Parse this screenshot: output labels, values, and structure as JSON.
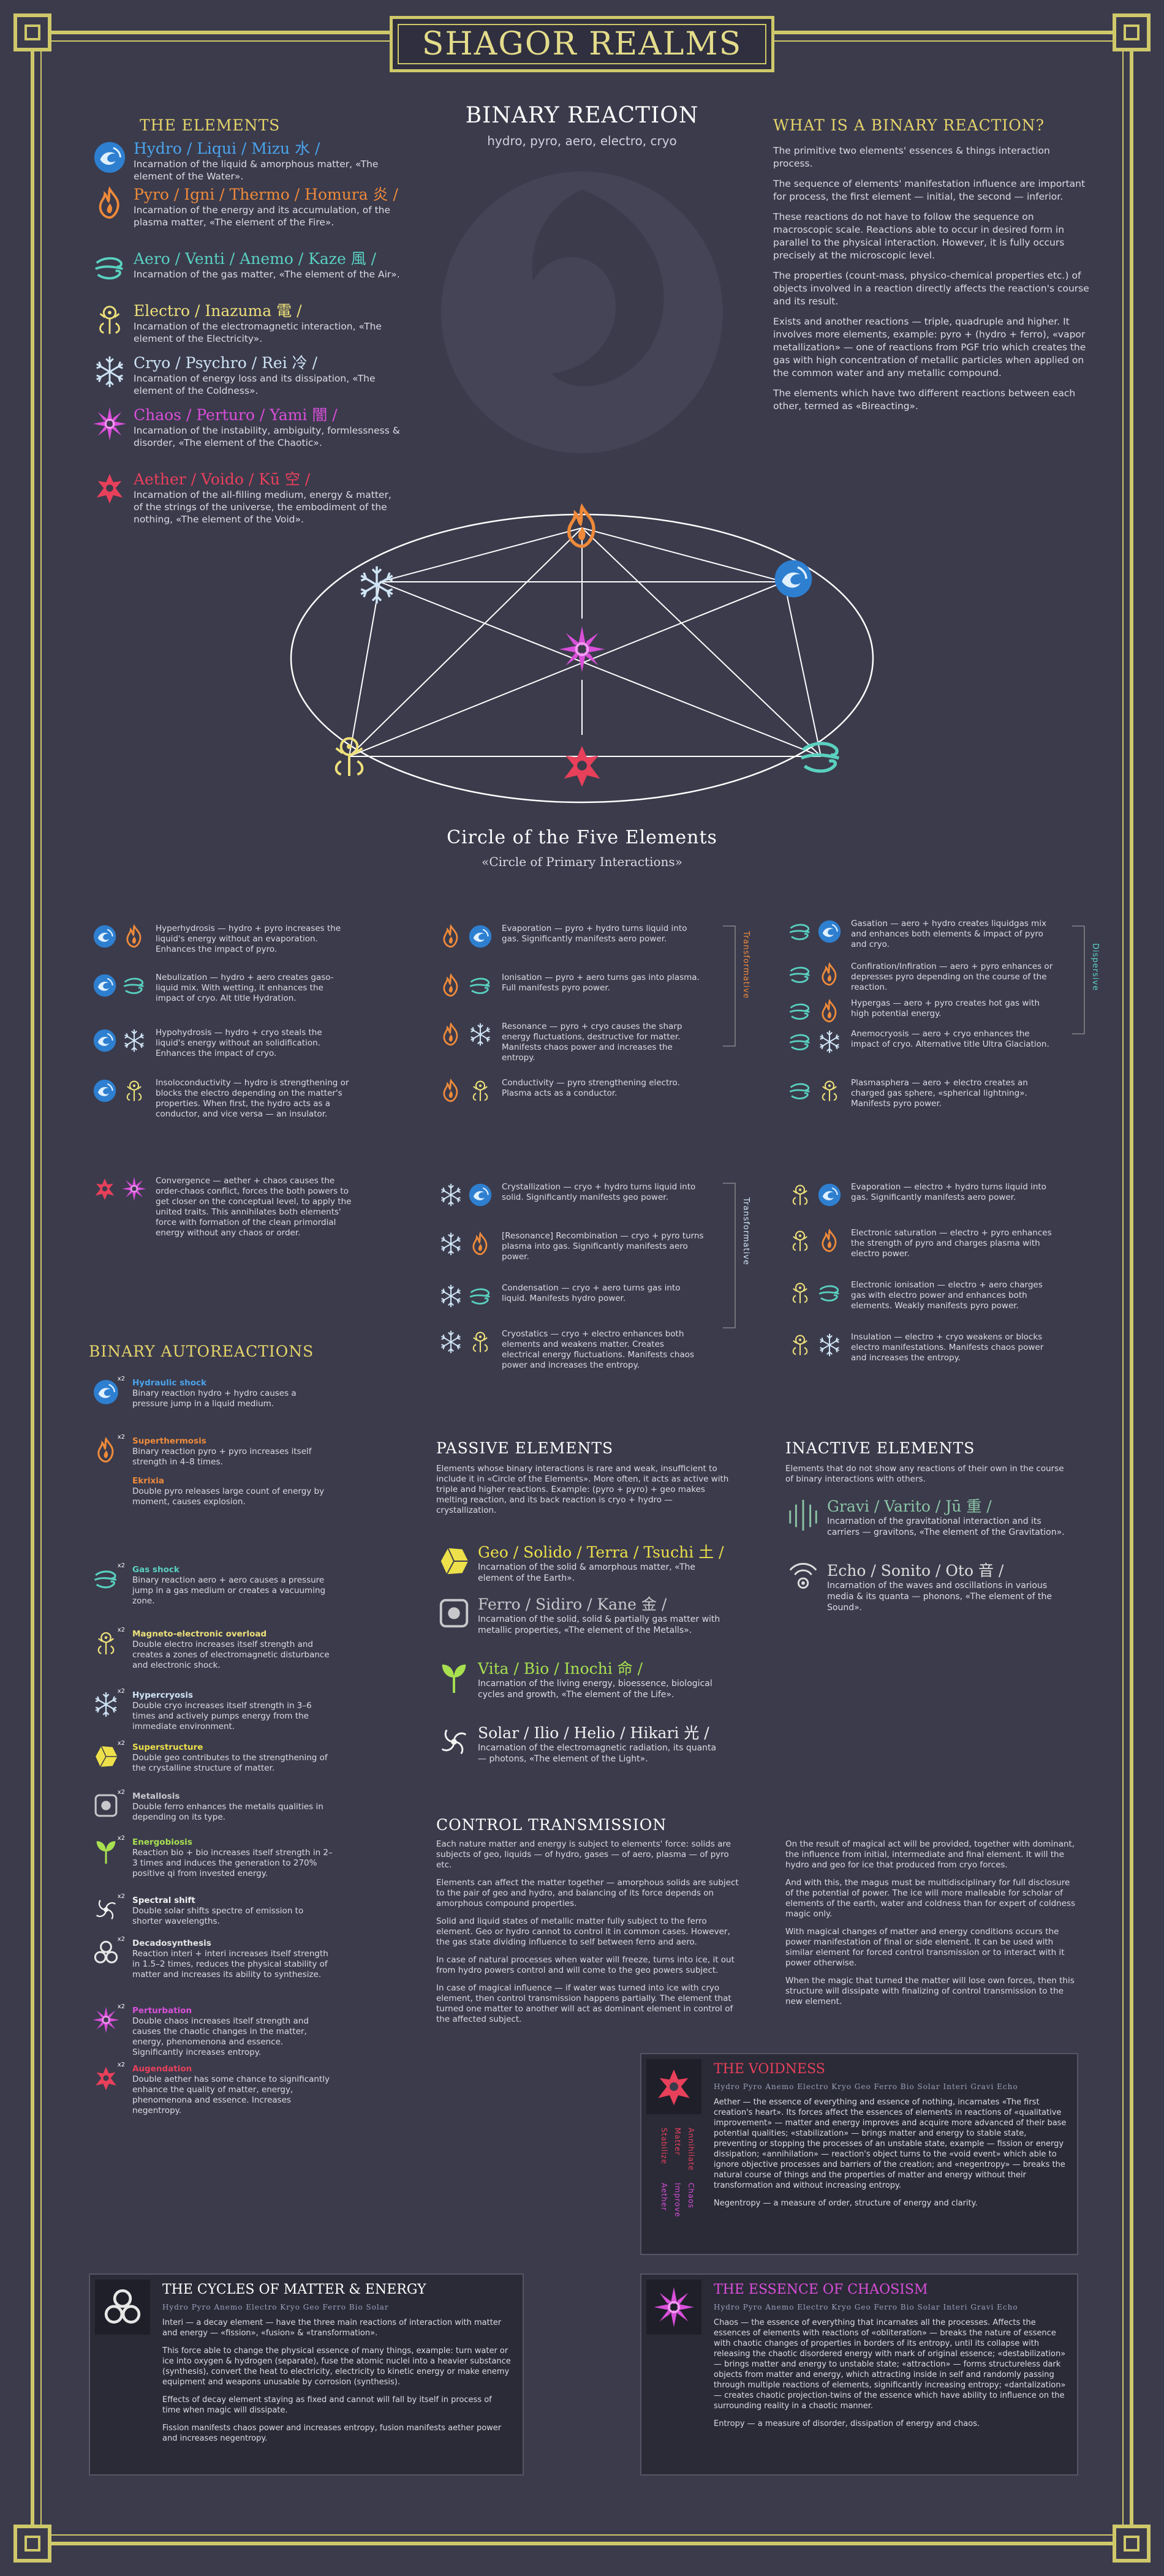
{
  "title": "SHAGOR REALMS",
  "center": {
    "heading": "BINARY REACTION",
    "subtitle": "hydro, pyro, aero, electro, cryo",
    "circle_title": "Circle of the Five Elements",
    "circle_subtitle": "«Circle of Primary Interactions»"
  },
  "elements_section": {
    "heading": "THE ELEMENTS",
    "items": [
      {
        "name": "Hydro / Liqui / Mizu 水 /",
        "desc": "Incarnation of the liquid & amorphous matter, «The element of the Water».",
        "icon": "water-drop-icon",
        "color": "#4aa4ec"
      },
      {
        "name": "Pyro / Igni / Thermo / Homura 炎 /",
        "desc": "Incarnation of the energy and its accumulation, of the plasma matter, «The element of the Fire».",
        "icon": "flame-icon",
        "color": "#ef8a3a"
      },
      {
        "name": "Aero / Venti / Anemo / Kaze 風 /",
        "desc": "Incarnation of the gas matter, «The element of the Air».",
        "icon": "wind-icon",
        "color": "#5ad1c0"
      },
      {
        "name": "Electro / Inazuma 電 /",
        "desc": "Incarnation of the electromagnetic interaction, «The element of the Electricity».",
        "icon": "lightning-icon",
        "color": "#eee07a"
      },
      {
        "name": "Cryo / Psychro / Rei 冷 /",
        "desc": "Incarnation of energy loss and its dissipation, «The element of the Coldness».",
        "icon": "snowflake-icon",
        "color": "#cfe4f4"
      },
      {
        "name": "Chaos / Perturo / Yami 闇 /",
        "desc": "Incarnation of the instability, ambiguity, formlessness & disorder, «The element of the Chaotic».",
        "icon": "chaos-star-icon",
        "color": "#d94fd9"
      },
      {
        "name": "Aether / Voido / Kū 空 /",
        "desc": "Incarnation of the all-filling medium, energy & matter, of the strings of the universe, the embodiment of the nothing, «The element of the Void».",
        "icon": "aether-icon",
        "color": "#e8405a"
      }
    ]
  },
  "what_is": {
    "heading": "WHAT IS A BINARY REACTION?",
    "paragraphs": [
      "The primitive two elements' essences & things interaction process.",
      "The sequence of elements' manifestation influence are important for process, the first element — initial, the second — inferior.",
      "These reactions do not have to follow the sequence on macroscopic scale. Reactions able to occur in desired form in parallel to the physical interaction. However, it is fully occurs precisely at the microscopic level.",
      "The properties (count-mass, physico-chemical properties etc.) of objects involved in a reaction directly affects the reaction's course and its result.",
      "Exists and another reactions — triple, quadruple and higher. It involves more elements, example: pyro + (hydro + ferro), «vapor metallization» — one of reactions from PGF trio which creates the gas with high concentration of metallic particles when applied on the common water and any metallic compound.",
      "The elements which have two different reactions between each other, termed as «Bireacting»."
    ]
  },
  "reactions_col1": [
    {
      "name": "Hyperhydrosis",
      "text": "Hyperhydrosis — hydro + pyro increases the liquid's energy without an evaporation. Enhances the impact of pyro.",
      "icons": [
        "water-drop-icon",
        "flame-icon"
      ]
    },
    {
      "name": "Nebulization",
      "text": "Nebulization — hydro + aero creates gaso-liquid mix. With wetting, it enhances the impact of cryo. Alt title Hydration.",
      "icons": [
        "water-drop-icon",
        "wind-icon"
      ]
    },
    {
      "name": "Hypohydrosis",
      "text": "Hypohydrosis — hydro + cryo steals the liquid's energy without an solidification. Enhances the impact of cryo.",
      "icons": [
        "water-drop-icon",
        "snowflake-icon"
      ]
    },
    {
      "name": "Insoloconductivity",
      "text": "Insoloconductivity — hydro is strengthening or blocks the electro depending on the matter's properties. When first, the hydro acts as a conductor, and vice versa — an insulator.",
      "icons": [
        "water-drop-icon",
        "lightning-icon"
      ]
    }
  ],
  "reactions_col2": [
    {
      "name": "Evaporation",
      "text": "Evaporation — pyro + hydro turns liquid into gas. Significantly manifests aero power.",
      "icons": [
        "flame-icon",
        "water-drop-icon"
      ]
    },
    {
      "name": "Ionisation",
      "text": "Ionisation — pyro + aero turns gas into plasma. Full manifests pyro power.",
      "icons": [
        "flame-icon",
        "wind-icon"
      ]
    },
    {
      "name": "Resonance",
      "text": "Resonance — pyro + cryo causes the sharp energy fluctuations, destructive for matter. Manifests chaos power and increases the entropy.",
      "icons": [
        "flame-icon",
        "snowflake-icon"
      ]
    },
    {
      "name": "Conductivity",
      "text": "Conductivity — pyro strengthening electro. Plasma acts as a conductor.",
      "icons": [
        "flame-icon",
        "lightning-icon"
      ]
    }
  ],
  "reactions_col3": [
    {
      "name": "Gasation",
      "text": "Gasation — aero + hydro creates liquidgas mix and enhances both elements & impact of pyro and cryo.",
      "icons": [
        "wind-icon",
        "water-drop-icon"
      ]
    },
    {
      "name": "Confiration/Infiration",
      "text": "Confiration/Infiration — aero + pyro enhances or depresses pyro depending on the course of the reaction.",
      "icons": [
        "wind-icon",
        "flame-icon"
      ]
    },
    {
      "name": "Hypergas",
      "text": "Hypergas — aero + pyro creates hot gas with high potential energy.",
      "icons": [
        "wind-icon",
        "flame-icon"
      ]
    },
    {
      "name": "Anemocryosis",
      "text": "Anemocryosis — aero + cryo enhances the impact of cryo. Alternative title Ultra Glaciation.",
      "icons": [
        "wind-icon",
        "snowflake-icon"
      ]
    },
    {
      "name": "Plasmasphera",
      "text": "Plasmasphera — aero + electro creates an charged gas sphere, «spherical lightning». Manifests pyro power.",
      "icons": [
        "wind-icon",
        "lightning-icon"
      ]
    }
  ],
  "convergence": {
    "name": "Convergence",
    "text": "Convergence — aether + chaos causes the order-chaos conflict, forces the both powers to get closer on the conceptual level, to apply the united traits. This annihilates both elements' force with formation of the clean primordial energy without any chaos or order.",
    "icons": [
      "aether-icon",
      "chaos-star-icon"
    ]
  },
  "reactions_col2b": [
    {
      "name": "Crystallization",
      "text": "Crystallization — cryo + hydro turns liquid into solid. Significantly manifests geo power.",
      "icons": [
        "snowflake-icon",
        "water-drop-icon"
      ]
    },
    {
      "name": "Recombination",
      "text": "[Resonance] Recombination — cryo + pyro turns plasma into gas. Significantly manifests aero power.",
      "icons": [
        "snowflake-icon",
        "flame-icon"
      ]
    },
    {
      "name": "Condensation",
      "text": "Condensation — cryo + aero turns gas into liquid. Manifests hydro power.",
      "icons": [
        "snowflake-icon",
        "wind-icon"
      ]
    },
    {
      "name": "Cryostatics",
      "text": "Cryostatics — cryo + electro enhances both elements and weakens matter. Creates electrical energy fluctuations. Manifests chaos power and increases the entropy.",
      "icons": [
        "snowflake-icon",
        "lightning-icon"
      ]
    }
  ],
  "reactions_col3b": [
    {
      "name": "Evaporation",
      "text": "Evaporation — electro + hydro turns liquid into gas. Significantly manifests aero power.",
      "icons": [
        "lightning-icon",
        "water-drop-icon"
      ]
    },
    {
      "name": "Electronic saturation",
      "text": "Electronic saturation — electro + pyro enhances the strength of pyro and charges plasma with electro power.",
      "icons": [
        "lightning-icon",
        "flame-icon"
      ]
    },
    {
      "name": "Electronic ionisation",
      "text": "Electronic ionisation — electro + aero charges gas with electro power and enhances both elements. Weakly manifests pyro power.",
      "icons": [
        "lightning-icon",
        "wind-icon"
      ]
    },
    {
      "name": "Insulation",
      "text": "Insulation — electro + cryo weakens or blocks electro manifestations. Manifests chaos power and increases the entropy.",
      "icons": [
        "lightning-icon",
        "snowflake-icon"
      ]
    }
  ],
  "side_labels": {
    "transformative_1": "Transformative",
    "transformative_2": "Transformative",
    "dispersive": "Dispersive"
  },
  "autoreactions": {
    "heading": "BINARY AUTOREACTIONS",
    "items": [
      {
        "name": "Hydraulic shock",
        "text": "Binary reaction hydro + hydro causes a pressure jump in a liquid medium.",
        "icon": "water-drop-icon",
        "color": "#4aa4ec"
      },
      {
        "name": "Superthermosis",
        "text": "Binary reaction pyro + pyro increases itself strength in 4–8 times.",
        "icon": "flame-icon",
        "color": "#ef8a3a"
      },
      {
        "name": "Ekrixia",
        "text": "Double pyro releases large count of energy by moment, causes explosion.",
        "icon": "",
        "color": "#ef8a3a"
      },
      {
        "name": "Gas shock",
        "text": "Binary reaction aero + aero causes a pressure jump in a gas medium or creates a vacuuming zone.",
        "icon": "wind-icon",
        "color": "#5ad1c0"
      },
      {
        "name": "Magneto-electronic overload",
        "text": "Double electro increases itself strength and creates a zones of electromagnetic disturbance and electronic shock.",
        "icon": "lightning-icon",
        "color": "#eee07a"
      },
      {
        "name": "Hypercryosis",
        "text": "Double cryo increases itself strength in 3–6 times and actively pumps energy from the immediate environment.",
        "icon": "snowflake-icon",
        "color": "#cfe4f4"
      },
      {
        "name": "Superstructure",
        "text": "Double geo contributes to the strengthening of the crystalline structure of matter.",
        "icon": "geo-icon",
        "color": "#ede04a"
      },
      {
        "name": "Metallosis",
        "text": "Double ferro enhances the metalls qualities in depending on its type.",
        "icon": "ferro-icon",
        "color": "#c8c8cc"
      },
      {
        "name": "Energobiosis",
        "text": "Reaction bio + bio increases itself strength in 2–3 times and induces the generation to 270% positive qi from invested energy.",
        "icon": "bio-icon",
        "color": "#a8e050"
      },
      {
        "name": "Spectral shift",
        "text": "Double solar shifts spectre of emission to shorter wavelengths.",
        "icon": "solar-icon",
        "color": "#f2f2f2"
      },
      {
        "name": "Decadosynthesis",
        "text": "Reaction interi + interi increases itself strength in 1.5–2 times, reduces the physical stability of matter and increases its ability to synthesize.",
        "icon": "interi-icon",
        "color": "#e6e6e6"
      },
      {
        "name": "Perturbation",
        "text": "Double chaos increases itself strength and causes the chaotic changes in the matter, energy, phenomenona and essence. Significantly increases entropy.",
        "icon": "chaos-star-icon",
        "color": "#d94fd9"
      },
      {
        "name": "Augendation",
        "text": "Double aether has some chance to significantly enhance the quality of matter, energy, phenomenona and essence. Increases negentropy.",
        "icon": "aether-icon",
        "color": "#e8405a"
      }
    ]
  },
  "passive": {
    "heading": "PASSIVE ELEMENTS",
    "intro": "Elements whose binary interactions is rare and weak, insufficient to include it in «Circle of the Elements». More often, it acts as active with triple and higher reactions. Example: (pyro + pyro) + geo makes melting reaction, and its back reaction is cryo + hydro — crystallization.",
    "items": [
      {
        "name": "Geo / Solido / Terra / Tsuchi 土 /",
        "desc": "Incarnation of the solid & amorphous matter, «The element of the Earth».",
        "icon": "geo-icon",
        "color": "#ede04a"
      },
      {
        "name": "Ferro / Sidiro / Kane 金 /",
        "desc": "Incarnation of the solid, solid & partially gas matter with metallic properties, «The element of the Metalls».",
        "icon": "ferro-icon",
        "color": "#c8c8cc"
      },
      {
        "name": "Vita / Bio / Inochi 命 /",
        "desc": "Incarnation of the living energy, bioessence, biological cycles and growth, «The element of the Life».",
        "icon": "bio-icon",
        "color": "#a8e050"
      },
      {
        "name": "Solar / Ilio / Helio / Hikari 光 /",
        "desc": "Incarnation of the electromagnetic radiation, its quanta — photons, «The element of the Light».",
        "icon": "solar-icon",
        "color": "#f2f2f2"
      }
    ]
  },
  "inactive": {
    "heading": "INACTIVE ELEMENTS",
    "intro": "Elements that do not show any reactions of their own in the course of binary interactions with others.",
    "items": [
      {
        "name": "Gravi / Varito / Jū 重 /",
        "desc": "Incarnation of the gravitational interaction and its carriers — gravitons, «The element of the Gravitation».",
        "icon": "gravi-icon",
        "color": "#8cc4a4"
      },
      {
        "name": "Echo / Sonito / Oto 音 /",
        "desc": "Incarnation of the waves and oscillations in various media & its quanta — phonons, «The element of the Sound».",
        "icon": "echo-icon",
        "color": "#dddddd"
      }
    ]
  },
  "control": {
    "heading": "CONTROL TRANSMISSION",
    "col1": [
      "Each nature matter and energy is subject to elements' force: solids are subjects of geo, liquids — of hydro, gases — of aero, plasma — of pyro etc.",
      "Elements can affect the matter together — amorphous solids are subject to the pair of geo and hydro, and balancing of its force depends on amorphous compound properties.",
      "Solid and liquid states of metallic matter fully subject to the ferro element. Geo or hydro cannot to control it in common cases. However, the gas state dividing influence to self between ferro and aero.",
      "In case of natural processes when water will freeze, turns into ice, it out from hydro powers control and will come to the geo powers subject.",
      "In case of magical influence — if water was turned into ice with cryo element, then control transmission happens partially. The element that turned one matter to another will act as dominant element in control of the affected subject."
    ],
    "col2": [
      "On the result of magical act will be provided, together with dominant, the influence from initial, intermediate and final element. It will the hydro and geo for ice that produced from cryo forces.",
      "And with this, the magus must be multidisciplinary for full disclosure of the potential of power. The ice will more malleable for scholar of elements of the earth, water and coldness than for expert of coldness magic only.",
      "With magical changes of matter and energy conditions occurs the power manifestation of final or side element. It can be used with similar element for forced control transmission or to interact with it power otherwise.",
      "When the magic that turned the matter will lose own forces, then this structure will dissipate with finalizing of control transmission to the new element."
    ]
  },
  "voidness": {
    "heading": "THE VOIDNESS",
    "elements_line": "Hydro Pyro Anemo Electro Kryo Geo Ferro Bio Solar Interi Gravi Echo",
    "paragraphs": [
      "Aether — the essence of everything and essence of nothing, incarnates «The first creation's heart». Its forces affect the essences of elements in reactions of «qualitative improvement» — matter and energy improves and acquire more advanced of their base potential qualities; «stabilization» — brings matter and energy to stable state, preventing or stopping the processes of an unstable state, example — fission or energy dissipation; «annihilation» — reaction's object turns to the «void event» which able to ignore objective processes and barriers of the creation; and «negentropy» — breaks the natural course of things and the properties of matter and energy without their transformation and without increasing entropy.",
      "Negentropy — a measure of order, structure of energy and clarity."
    ],
    "side": [
      "Stabilize",
      "Matter",
      "Annihilate",
      "Aether",
      "Improve",
      "Chaos"
    ]
  },
  "chaosism": {
    "heading": "THE ESSENCE OF CHAOSISM",
    "elements_line": "Hydro Pyro Anemo Electro Kryo Geo Ferro Bio Solar Interi Gravi Echo",
    "paragraphs": [
      "Chaos — the essence of everything that incarnates all the processes. Affects the essences of elements with reactions of «obliteration» — breaks the nature of essence with chaotic changes of properties in borders of its entropy, until its collapse with releasing the chaotic disordered energy with mark of original essence; «destabilization» — brings matter and energy to unstable state; «attraction» — forms structureless dark objects from matter and energy, which attracting inside in self and randomly passing through multiple reactions of elements, significantly increasing entropy; «dantalization» — creates chaotic projection-twins of the essence which have ability to influence on the surrounding reality in a chaotic manner.",
      "Entropy — a measure of disorder, dissipation of energy and chaos."
    ]
  },
  "cycles": {
    "heading": "THE CYCLES OF MATTER & ENERGY",
    "elements_line": "Hydro Pyro Anemo Electro Kryo Geo Ferro Bio Solar",
    "paragraphs": [
      "Interi — a decay element — have the three main reactions of interaction with matter and energy — «fission», «fusion» & «transformation».",
      "This force able to change the physical essence of many things, example: turn water or ice into oxygen & hydrogen (separate), fuse the atomic nuclei into a heavier substance (synthesis), convert the heat to electricity, electricity to kinetic energy or make enemy equipment and weapons unusable by corrosion (synthesis).",
      "Effects of decay element staying as fixed and cannot will fall by itself in process of time when magic will dissipate.",
      "Fission manifests chaos power and increases entropy, fusion manifests aether power and increases negentropy."
    ]
  },
  "colors": {
    "frame": "#cfc86a",
    "background": "#3b3b4c"
  }
}
